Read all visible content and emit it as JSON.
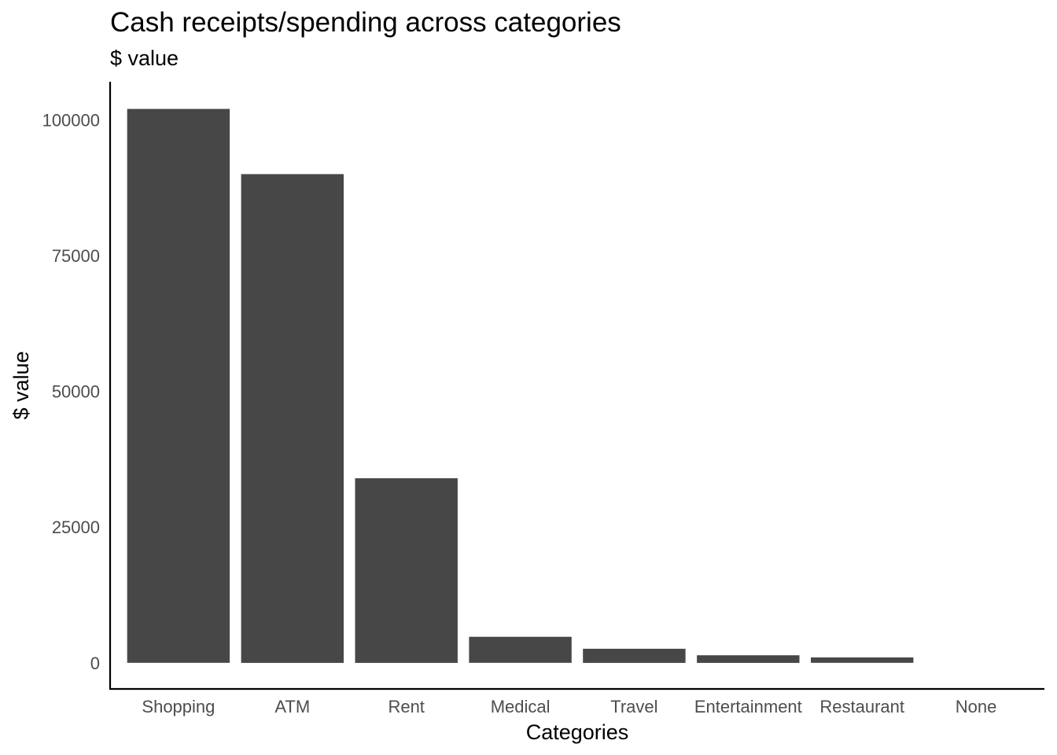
{
  "chart_data": {
    "type": "bar",
    "title": "Cash receipts/spending across categories",
    "subtitle": "$ value",
    "xlabel": "Categories",
    "ylabel": "$ value",
    "categories": [
      "Shopping",
      "ATM",
      "Rent",
      "Medical",
      "Travel",
      "Entertainment",
      "Restaurant",
      "None"
    ],
    "values": [
      102000,
      90000,
      34000,
      4800,
      2600,
      1400,
      1000,
      0
    ],
    "yticks": [
      0,
      25000,
      50000,
      75000,
      100000
    ],
    "ylim": [
      -4800,
      107000
    ],
    "grid": false,
    "legend": "none",
    "colors": {
      "bar": "#474747",
      "axis": "#000000",
      "tick_text": "#4d4d4d"
    }
  }
}
